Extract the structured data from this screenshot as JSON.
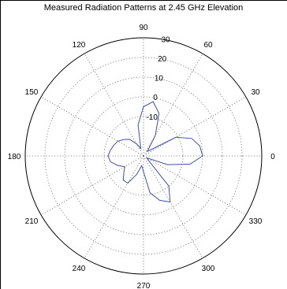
{
  "chart_data": {
    "type": "polar-line",
    "title": "Measured Radiation Patterns at 2.45 GHz Elevation",
    "angle_unit": "degrees",
    "angle_ticks": [
      0,
      30,
      60,
      90,
      120,
      150,
      180,
      210,
      240,
      270,
      300,
      330
    ],
    "radial_ticks": [
      -10,
      0,
      10,
      20,
      30
    ],
    "radial_range": [
      -30,
      30
    ],
    "grid": true,
    "series_color": "#3f51a8",
    "series": [
      {
        "theta": [
          0,
          10,
          20,
          30,
          40,
          50,
          60,
          70,
          80,
          90,
          100,
          110,
          120,
          130,
          140,
          150,
          160,
          170,
          180,
          190,
          200,
          210,
          220,
          230,
          240,
          250,
          260,
          270,
          280,
          290,
          300,
          310,
          320,
          330,
          340,
          350,
          360
        ],
        "r": [
          0,
          -1,
          -4,
          -11,
          -25,
          -27,
          -18,
          -7,
          -2,
          -5,
          -14,
          -26,
          -23,
          -19,
          -17,
          -15,
          -14,
          -13,
          -12,
          -13,
          -16,
          -19,
          -17,
          -14,
          -14,
          -20,
          -25,
          -22,
          -11,
          -6,
          -3,
          -10,
          -27,
          -28,
          -17,
          -6,
          0
        ]
      }
    ]
  }
}
